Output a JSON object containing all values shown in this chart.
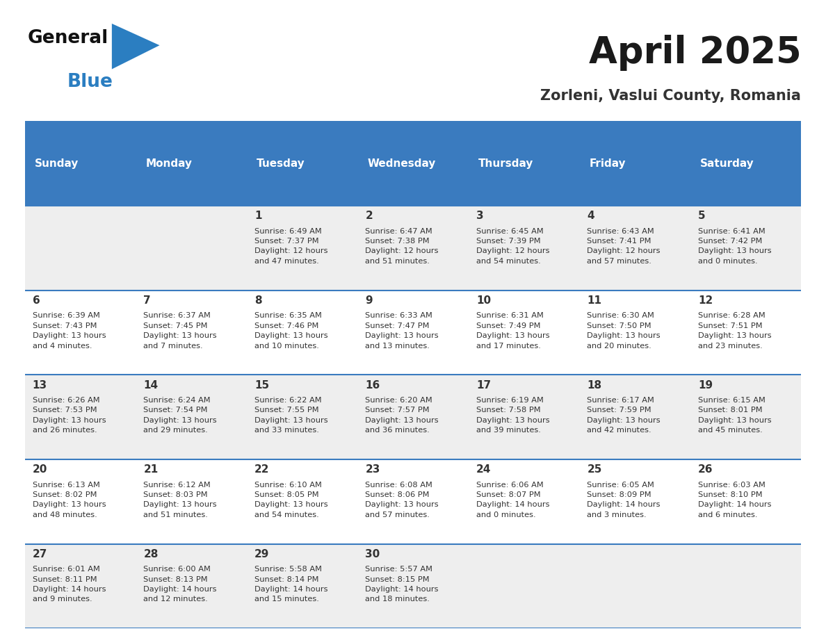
{
  "title": "April 2025",
  "subtitle": "Zorleni, Vaslui County, Romania",
  "days_of_week": [
    "Sunday",
    "Monday",
    "Tuesday",
    "Wednesday",
    "Thursday",
    "Friday",
    "Saturday"
  ],
  "header_bg": "#3a7bbf",
  "header_text": "#ffffff",
  "row_bg_odd": "#eeeeee",
  "row_bg_even": "#ffffff",
  "cell_text_color": "#333333",
  "grid_line_color": "#3a7bbf",
  "logo_general_color": "#111111",
  "logo_blue_color": "#2b7ec1",
  "fig_bg": "#ffffff",
  "calendar_data": [
    [
      {
        "day": null,
        "text": null
      },
      {
        "day": null,
        "text": null
      },
      {
        "day": 1,
        "text": "Sunrise: 6:49 AM\nSunset: 7:37 PM\nDaylight: 12 hours\nand 47 minutes."
      },
      {
        "day": 2,
        "text": "Sunrise: 6:47 AM\nSunset: 7:38 PM\nDaylight: 12 hours\nand 51 minutes."
      },
      {
        "day": 3,
        "text": "Sunrise: 6:45 AM\nSunset: 7:39 PM\nDaylight: 12 hours\nand 54 minutes."
      },
      {
        "day": 4,
        "text": "Sunrise: 6:43 AM\nSunset: 7:41 PM\nDaylight: 12 hours\nand 57 minutes."
      },
      {
        "day": 5,
        "text": "Sunrise: 6:41 AM\nSunset: 7:42 PM\nDaylight: 13 hours\nand 0 minutes."
      }
    ],
    [
      {
        "day": 6,
        "text": "Sunrise: 6:39 AM\nSunset: 7:43 PM\nDaylight: 13 hours\nand 4 minutes."
      },
      {
        "day": 7,
        "text": "Sunrise: 6:37 AM\nSunset: 7:45 PM\nDaylight: 13 hours\nand 7 minutes."
      },
      {
        "day": 8,
        "text": "Sunrise: 6:35 AM\nSunset: 7:46 PM\nDaylight: 13 hours\nand 10 minutes."
      },
      {
        "day": 9,
        "text": "Sunrise: 6:33 AM\nSunset: 7:47 PM\nDaylight: 13 hours\nand 13 minutes."
      },
      {
        "day": 10,
        "text": "Sunrise: 6:31 AM\nSunset: 7:49 PM\nDaylight: 13 hours\nand 17 minutes."
      },
      {
        "day": 11,
        "text": "Sunrise: 6:30 AM\nSunset: 7:50 PM\nDaylight: 13 hours\nand 20 minutes."
      },
      {
        "day": 12,
        "text": "Sunrise: 6:28 AM\nSunset: 7:51 PM\nDaylight: 13 hours\nand 23 minutes."
      }
    ],
    [
      {
        "day": 13,
        "text": "Sunrise: 6:26 AM\nSunset: 7:53 PM\nDaylight: 13 hours\nand 26 minutes."
      },
      {
        "day": 14,
        "text": "Sunrise: 6:24 AM\nSunset: 7:54 PM\nDaylight: 13 hours\nand 29 minutes."
      },
      {
        "day": 15,
        "text": "Sunrise: 6:22 AM\nSunset: 7:55 PM\nDaylight: 13 hours\nand 33 minutes."
      },
      {
        "day": 16,
        "text": "Sunrise: 6:20 AM\nSunset: 7:57 PM\nDaylight: 13 hours\nand 36 minutes."
      },
      {
        "day": 17,
        "text": "Sunrise: 6:19 AM\nSunset: 7:58 PM\nDaylight: 13 hours\nand 39 minutes."
      },
      {
        "day": 18,
        "text": "Sunrise: 6:17 AM\nSunset: 7:59 PM\nDaylight: 13 hours\nand 42 minutes."
      },
      {
        "day": 19,
        "text": "Sunrise: 6:15 AM\nSunset: 8:01 PM\nDaylight: 13 hours\nand 45 minutes."
      }
    ],
    [
      {
        "day": 20,
        "text": "Sunrise: 6:13 AM\nSunset: 8:02 PM\nDaylight: 13 hours\nand 48 minutes."
      },
      {
        "day": 21,
        "text": "Sunrise: 6:12 AM\nSunset: 8:03 PM\nDaylight: 13 hours\nand 51 minutes."
      },
      {
        "day": 22,
        "text": "Sunrise: 6:10 AM\nSunset: 8:05 PM\nDaylight: 13 hours\nand 54 minutes."
      },
      {
        "day": 23,
        "text": "Sunrise: 6:08 AM\nSunset: 8:06 PM\nDaylight: 13 hours\nand 57 minutes."
      },
      {
        "day": 24,
        "text": "Sunrise: 6:06 AM\nSunset: 8:07 PM\nDaylight: 14 hours\nand 0 minutes."
      },
      {
        "day": 25,
        "text": "Sunrise: 6:05 AM\nSunset: 8:09 PM\nDaylight: 14 hours\nand 3 minutes."
      },
      {
        "day": 26,
        "text": "Sunrise: 6:03 AM\nSunset: 8:10 PM\nDaylight: 14 hours\nand 6 minutes."
      }
    ],
    [
      {
        "day": 27,
        "text": "Sunrise: 6:01 AM\nSunset: 8:11 PM\nDaylight: 14 hours\nand 9 minutes."
      },
      {
        "day": 28,
        "text": "Sunrise: 6:00 AM\nSunset: 8:13 PM\nDaylight: 14 hours\nand 12 minutes."
      },
      {
        "day": 29,
        "text": "Sunrise: 5:58 AM\nSunset: 8:14 PM\nDaylight: 14 hours\nand 15 minutes."
      },
      {
        "day": 30,
        "text": "Sunrise: 5:57 AM\nSunset: 8:15 PM\nDaylight: 14 hours\nand 18 minutes."
      },
      {
        "day": null,
        "text": null
      },
      {
        "day": null,
        "text": null
      },
      {
        "day": null,
        "text": null
      }
    ]
  ]
}
